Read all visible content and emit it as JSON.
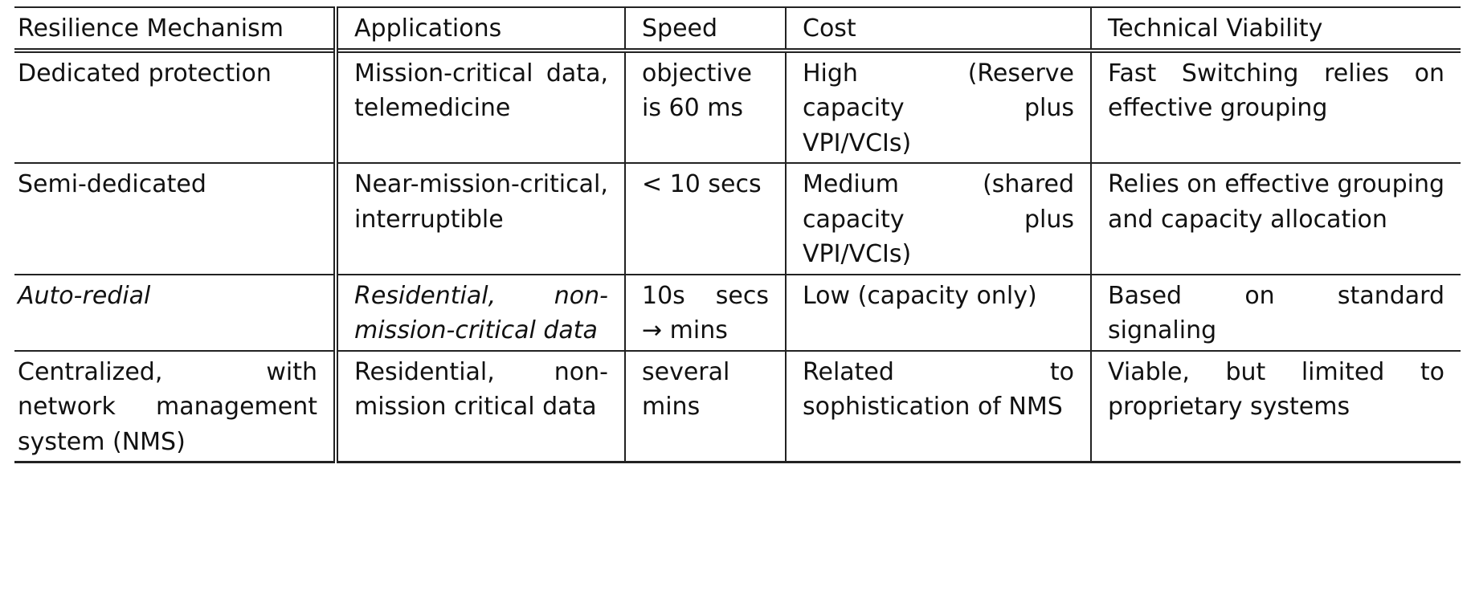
{
  "headers": [
    "Resilience Mechanism",
    "Applications",
    "Speed",
    "Cost",
    "Technical Viability"
  ],
  "rows": [
    {
      "mechanism": "Dedicated protection",
      "applications": "Mission-critical data, telemedicine",
      "speed": "objective is 60 ms",
      "cost": "High (Reserve capacity plus VPI/VCIs)",
      "viability": "Fast Switching relies on effective grouping"
    },
    {
      "mechanism": "Semi-dedicated",
      "applications": "Near-mission-critical, interruptible",
      "speed": "< 10 secs",
      "cost": "Medium (shared capacity plus VPI/VCIs)",
      "viability": "Relies on effective grouping and capacity allocation"
    },
    {
      "mechanism": "Auto-redial",
      "applications": "Residential, non-mission-critical data",
      "speed": "10s secs → mins",
      "cost": "Low (capacity only)",
      "viability": "Based on standard signaling"
    },
    {
      "mechanism": "Centralized, with network management system (NMS)",
      "applications": "Residential, non-mission critical data",
      "speed": "several mins",
      "cost": "Related to sophistication of NMS",
      "viability": "Viable, but limited to proprietary systems"
    }
  ]
}
